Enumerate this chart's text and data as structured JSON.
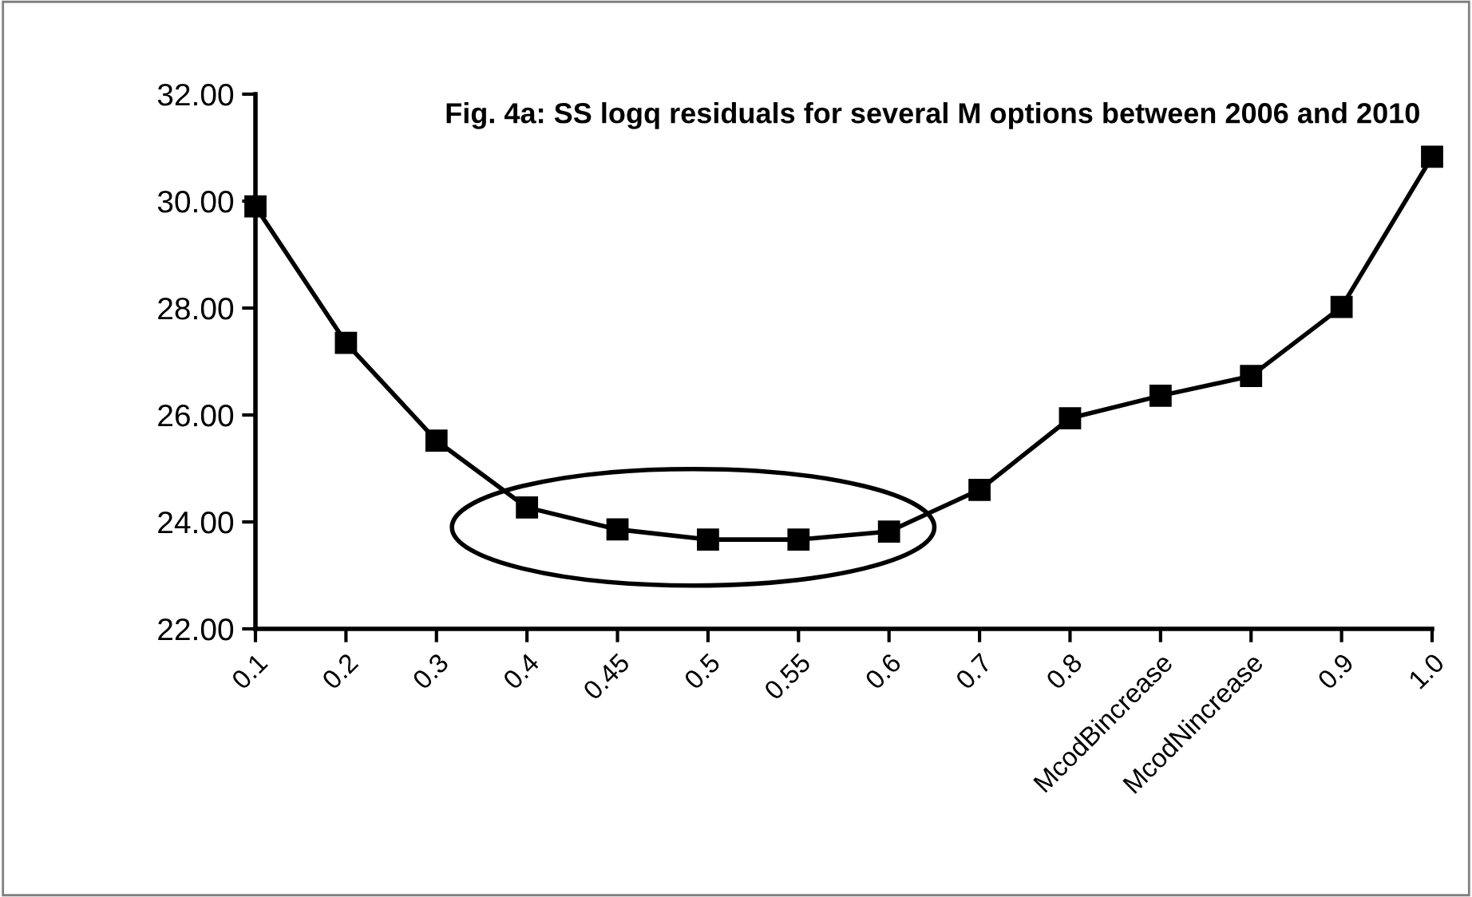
{
  "chart_data": {
    "type": "line",
    "title": "Fig. 4a: SS logq residuals for several M options between 2006 and 2010",
    "categories": [
      "0.1",
      "0.2",
      "0.3",
      "0.4",
      "0.45",
      "0.5",
      "0.55",
      "0.6",
      "0.7",
      "0.8",
      "McodBincrease",
      "McodNincrease",
      "0.9",
      "1.0"
    ],
    "series": [
      {
        "color": "#000000",
        "values": [
          29.9,
          27.35,
          25.52,
          24.27,
          23.86,
          23.67,
          23.67,
          23.82,
          24.6,
          25.94,
          26.36,
          26.73,
          28.02,
          30.83
        ]
      }
    ],
    "ylim": [
      22,
      32
    ],
    "yticks": [
      {
        "value": 22,
        "label": "22.00"
      },
      {
        "value": 24,
        "label": "24.00"
      },
      {
        "value": 26,
        "label": "26.00"
      },
      {
        "value": 28,
        "label": "28.00"
      },
      {
        "value": 30,
        "label": "30.00"
      },
      {
        "value": 32,
        "label": "32.00"
      }
    ],
    "marker": "square",
    "line_style": "solid",
    "grid": false,
    "legend": false
  }
}
